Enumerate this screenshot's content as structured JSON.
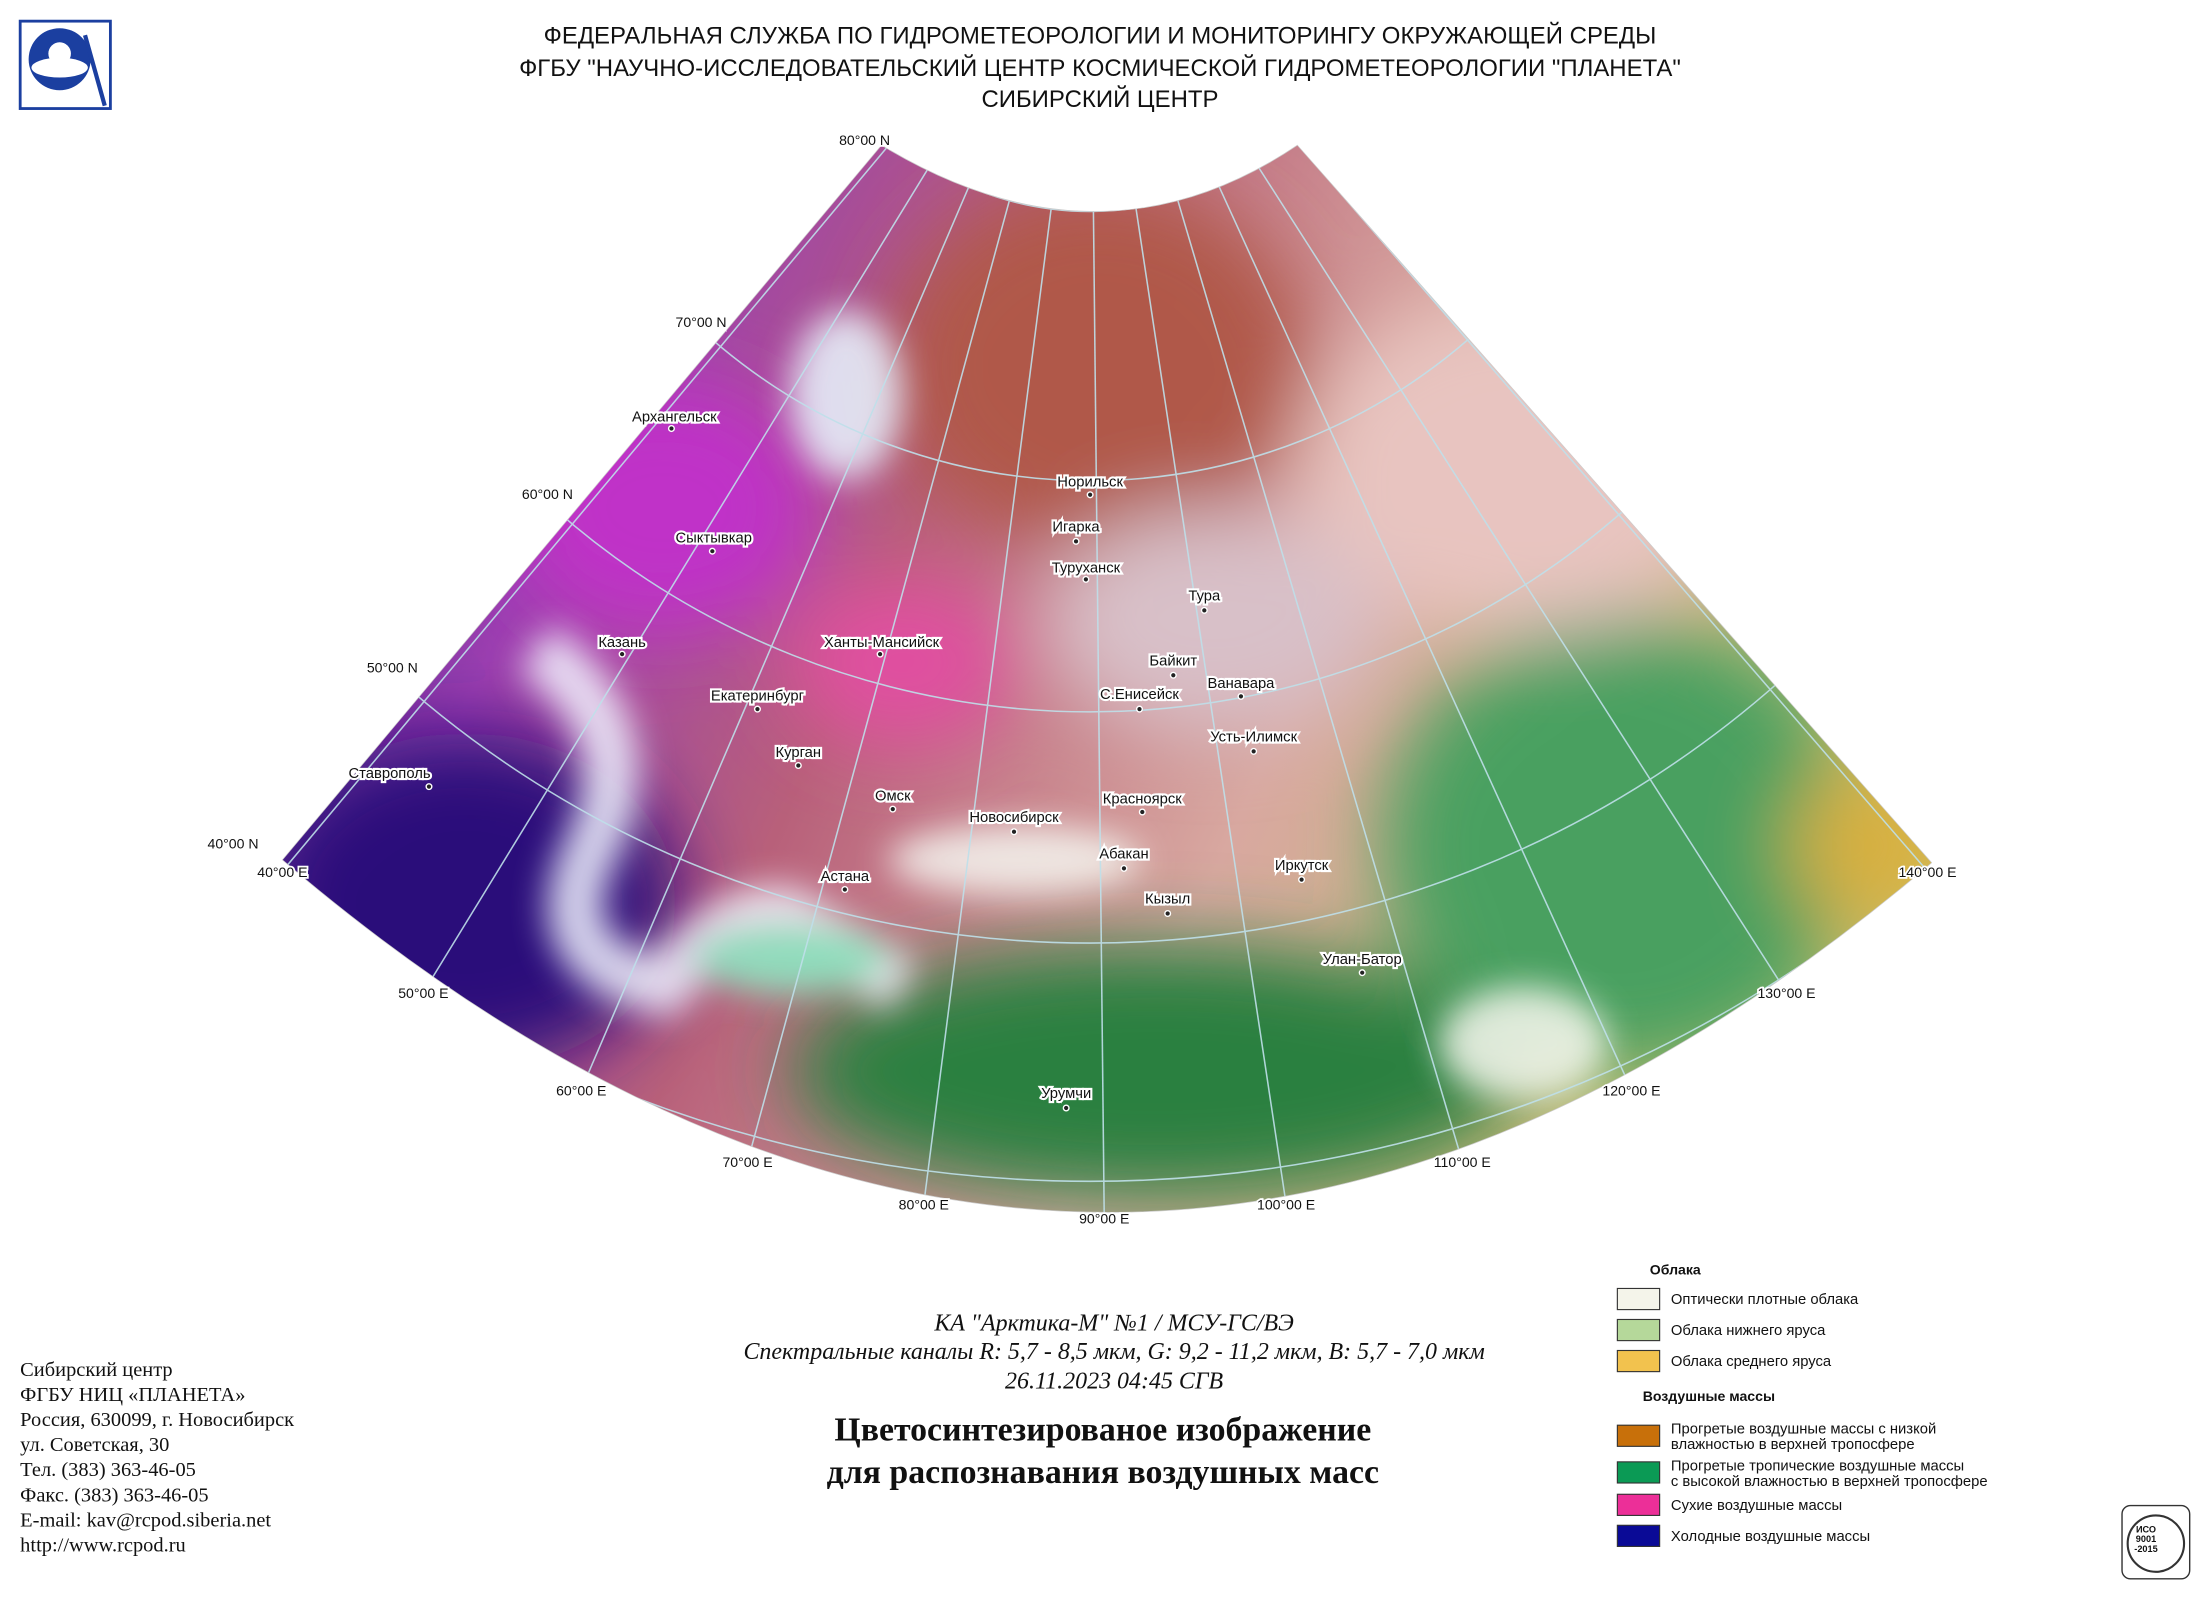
{
  "header": {
    "lines": [
      "ФЕДЕРАЛЬНАЯ СЛУЖБА ПО ГИДРОМЕТЕОРОЛОГИИ И МОНИТОРИНГУ ОКРУЖАЮЩЕЙ СРЕДЫ",
      "ФГБУ \"НАУЧНО-ИССЛЕДОВАТЕЛЬСКИЙ ЦЕНТР КОСМИЧЕСКОЙ ГИДРОМЕТЕОРОЛОГИИ \"ПЛАНЕТА\"",
      "СИБИРСКИЙ ЦЕНТР"
    ]
  },
  "map": {
    "latitude_labels": [
      "80°00 N",
      "70°00 N",
      "60°00 N",
      "50°00 N",
      "40°00 N"
    ],
    "longitude_labels": [
      "40°00 E",
      "50°00 E",
      "60°00 E",
      "70°00 E",
      "80°00 E",
      "90°00 E",
      "100°00 E",
      "110°00 E",
      "120°00 E",
      "130°00 E",
      "140°00 E"
    ],
    "cities": [
      "Архангельск",
      "Сыктывкар",
      "Казань",
      "Ханты-Мансийск",
      "Екатеринбург",
      "Курган",
      "Ставрополь",
      "Омск",
      "Новосибирск",
      "Астана",
      "Норильск",
      "Игарка",
      "Туруханск",
      "Тура",
      "Байкит",
      "Ванавара",
      "С.Енисейск",
      "Усть-Илимск",
      "Красноярск",
      "Абакан",
      "Кызыл",
      "Иркутск",
      "Улан-Батор",
      "Урумчи"
    ]
  },
  "info": {
    "lines": [
      "КА \"Арктика-М\" №1 / МСУ-ГС/ВЭ",
      "Спектральные каналы R: 5,7 - 8,5 мкм, G: 9,2 - 11,2 мкм, B: 5,7 - 7,0 мкм",
      "26.11.2023  04:45 СГВ"
    ],
    "title": [
      "Цветосинтезированое изображение",
      "для распознавания воздушных масс"
    ]
  },
  "legend": {
    "groups": [
      {
        "heading": "Облака",
        "items": [
          {
            "label": [
              "Оптически плотные облака"
            ],
            "color": "#f4f4ea"
          },
          {
            "label": [
              "Облака нижнего яруса"
            ],
            "color": "#b5d89a"
          },
          {
            "label": [
              "Облака среднего яруса"
            ],
            "color": "#f2c24e"
          }
        ]
      },
      {
        "heading": "Воздушные массы",
        "items": [
          {
            "label": [
              "Прогретые воздушные массы с низкой",
              "влажностью в верхней тропосфере"
            ],
            "color": "#c8700a"
          },
          {
            "label": [
              "Прогретые тропические воздушные массы",
              "с высокой влажностью в верхней тропосфере"
            ],
            "color": "#0b9a55"
          },
          {
            "label": [
              "Сухие воздушные массы"
            ],
            "color": "#ec2f98"
          },
          {
            "label": [
              "Холодные воздушные массы"
            ],
            "color": "#0a0a96"
          }
        ]
      }
    ]
  },
  "footer": {
    "lines": [
      "Сибирский центр",
      "ФГБУ НИЦ «ПЛАНЕТА»",
      "Россия, 630099, г. Новосибирск",
      "ул. Советская, 30",
      "Тел. (383) 363-46-05",
      "Факс. (383) 363-46-05",
      "E-mail: kav@rcpod.siberia.net",
      "http://www.rcpod.ru"
    ]
  },
  "iso": {
    "lines": [
      "ИСО",
      "9001",
      "-2015"
    ]
  }
}
